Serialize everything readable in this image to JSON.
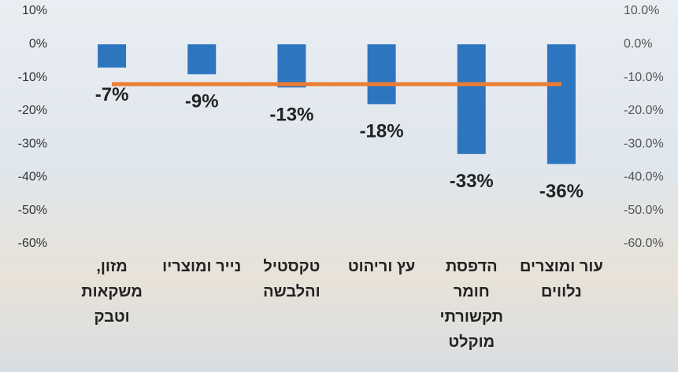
{
  "chart_data": {
    "type": "bar",
    "categories": [
      "מזון, משקאות וטבק",
      "נייר ומוצריו",
      "טקסטיל והלבשה",
      "עץ וריהוט",
      "הדפסת חומר תקשורתי מוקלט",
      "עור ומוצרים נלווים"
    ],
    "values": [
      -7,
      -9,
      -13,
      -18,
      -33,
      -36
    ],
    "value_labels": [
      "-7%",
      "-9%",
      "-13%",
      "-18%",
      "-33%",
      "-36%"
    ],
    "color": "#2e75c0",
    "series": [
      {
        "type": "line",
        "color": "#ed7d31",
        "axis": "y2",
        "values": [
          -12,
          -12,
          -12,
          -12,
          -12,
          -12
        ]
      }
    ],
    "ylim": [
      -60,
      10
    ],
    "yticks": [
      {
        "value": 10,
        "label": "10%"
      },
      {
        "value": 0,
        "label": "0%"
      },
      {
        "value": -10,
        "label": "-10%"
      },
      {
        "value": -20,
        "label": "-20%"
      },
      {
        "value": -30,
        "label": "-30%"
      },
      {
        "value": -40,
        "label": "-40%"
      },
      {
        "value": -50,
        "label": "-50%"
      },
      {
        "value": -60,
        "label": "-60%"
      }
    ],
    "y2lim": [
      -60,
      10
    ],
    "y2ticks": [
      {
        "value": 10,
        "label": "10.0%"
      },
      {
        "value": 0,
        "label": "0.0%"
      },
      {
        "value": -10,
        "label": "-10.0%"
      },
      {
        "value": -20,
        "label": "-20.0%"
      },
      {
        "value": -30,
        "label": "-30.0%"
      },
      {
        "value": -40,
        "label": "-40.0%"
      },
      {
        "value": -50,
        "label": "-50.0%"
      },
      {
        "value": -60,
        "label": "-60.0%"
      }
    ]
  }
}
